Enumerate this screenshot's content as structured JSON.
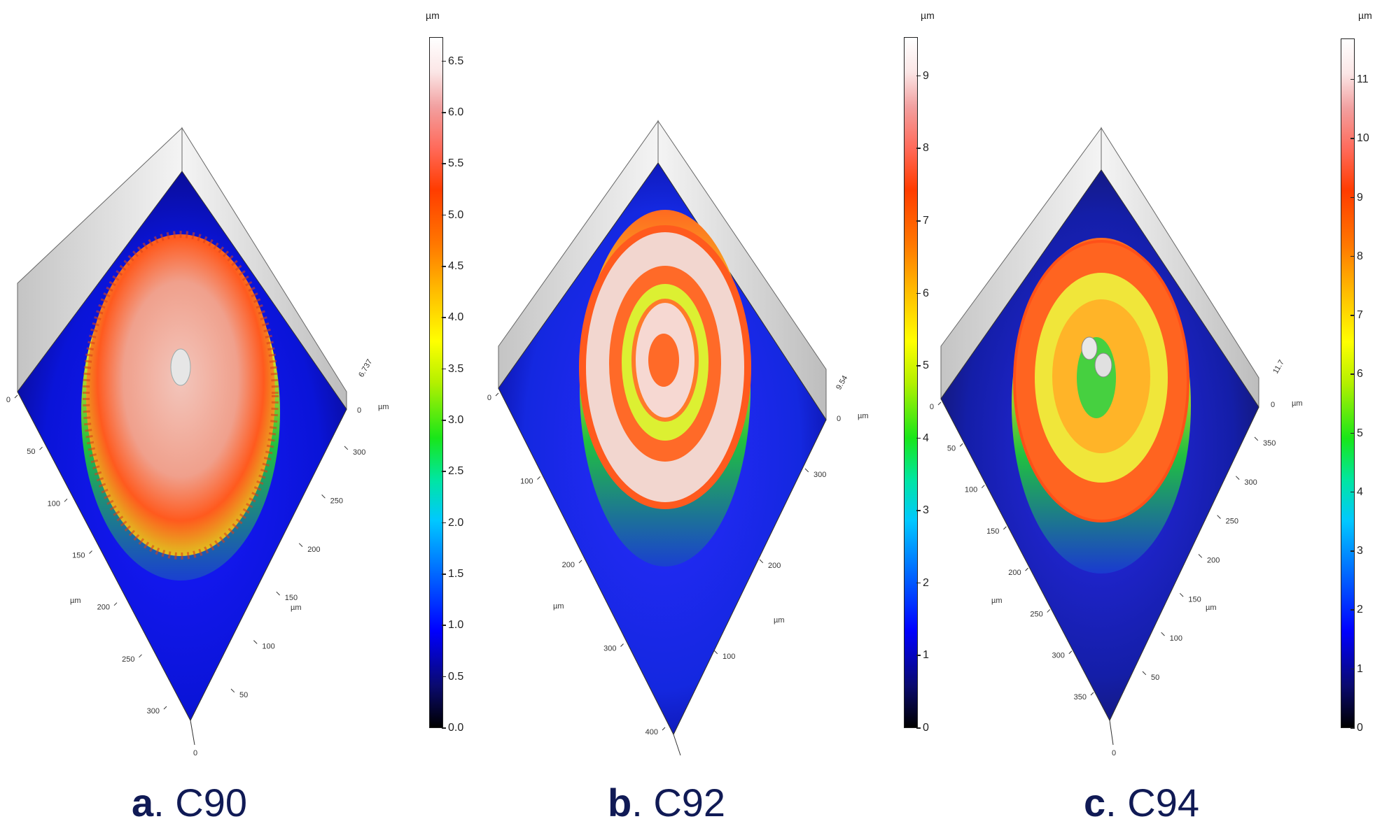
{
  "panels": [
    {
      "id": "a",
      "caption_letter": "a",
      "caption_sep": ". ",
      "caption_name": "C90",
      "colorbar": {
        "unit": "µm",
        "ticks": [
          "0.0",
          "0.5",
          "1.0",
          "1.5",
          "2.0",
          "2.5",
          "3.0",
          "3.5",
          "4.0",
          "4.5",
          "5.0",
          "5.5",
          "6.0",
          "6.5"
        ],
        "max": 6.737
      },
      "z_max_label": "6.737",
      "z_zero_label": "0",
      "z_unit": "µm",
      "left_axis": {
        "ticks": [
          "0",
          "50",
          "100",
          "150",
          "200",
          "250",
          "300"
        ],
        "unit": "µm"
      },
      "right_axis": {
        "ticks": [
          "50",
          "100",
          "150",
          "200",
          "250",
          "300"
        ],
        "unit": "µm"
      },
      "bottom_label": "0",
      "top_colors": [
        "#ff5a1e",
        "#f2c8c0",
        "#e6f02a"
      ]
    },
    {
      "id": "b",
      "caption_letter": "b",
      "caption_sep": ". ",
      "caption_name": "C92",
      "colorbar": {
        "unit": "µm",
        "ticks": [
          "0",
          "1",
          "2",
          "3",
          "4",
          "5",
          "6",
          "7",
          "8",
          "9"
        ],
        "max": 9.54
      },
      "z_max_label": "9.54",
      "z_zero_label": "0",
      "z_unit": "µm",
      "left_axis": {
        "ticks": [
          "0",
          "100",
          "200",
          "300",
          "400"
        ],
        "unit": "µm"
      },
      "right_axis": {
        "ticks": [
          "100",
          "200",
          "300"
        ],
        "unit": "µm"
      },
      "bottom_label": "",
      "top_colors": [
        "#ff6a28",
        "#f6d8d2",
        "#dcf032"
      ]
    },
    {
      "id": "c",
      "caption_letter": "c",
      "caption_sep": ". ",
      "caption_name": "C94",
      "colorbar": {
        "unit": "µm",
        "ticks": [
          "0",
          "1",
          "2",
          "3",
          "4",
          "5",
          "6",
          "7",
          "8",
          "9",
          "10",
          "11"
        ],
        "max": 11.7
      },
      "z_max_label": "11.7",
      "z_zero_label": "0",
      "z_unit": "µm",
      "left_axis": {
        "ticks": [
          "0",
          "50",
          "100",
          "150",
          "200",
          "250",
          "300",
          "350"
        ],
        "unit": "µm"
      },
      "right_axis": {
        "ticks": [
          "50",
          "100",
          "150",
          "200",
          "250",
          "300",
          "350"
        ],
        "unit": "µm"
      },
      "bottom_label": "0",
      "top_colors": [
        "#ff6420",
        "#f0e63a",
        "#ffb428"
      ]
    }
  ]
}
